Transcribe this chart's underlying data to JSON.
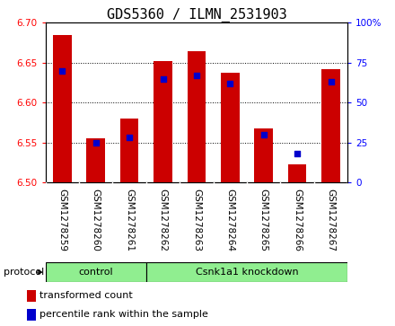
{
  "title": "GDS5360 / ILMN_2531903",
  "categories": [
    "GSM1278259",
    "GSM1278260",
    "GSM1278261",
    "GSM1278262",
    "GSM1278263",
    "GSM1278264",
    "GSM1278265",
    "GSM1278266",
    "GSM1278267"
  ],
  "bar_values": [
    6.685,
    6.555,
    6.58,
    6.652,
    6.665,
    6.638,
    6.568,
    6.523,
    6.642
  ],
  "percentile_values": [
    70,
    25,
    28,
    65,
    67,
    62,
    30,
    18,
    63
  ],
  "ylim_left": [
    6.5,
    6.7
  ],
  "ylim_right": [
    0,
    100
  ],
  "yticks_left": [
    6.5,
    6.55,
    6.6,
    6.65,
    6.7
  ],
  "yticks_right": [
    0,
    25,
    50,
    75,
    100
  ],
  "bar_color": "#cc0000",
  "dot_color": "#0000cc",
  "bar_bottom": 6.5,
  "control_count": 3,
  "knockdown_count": 6,
  "protocol_label": "protocol",
  "control_label": "control",
  "knockdown_label": "Csnk1a1 knockdown",
  "protocol_group_color": "#90ee90",
  "legend_items": [
    {
      "label": "transformed count",
      "color": "#cc0000"
    },
    {
      "label": "percentile rank within the sample",
      "color": "#0000cc"
    }
  ],
  "bg_color": "#d3d3d3",
  "plot_bg": "#ffffff",
  "title_fontsize": 11,
  "tick_fontsize": 7.5,
  "label_fontsize": 8
}
